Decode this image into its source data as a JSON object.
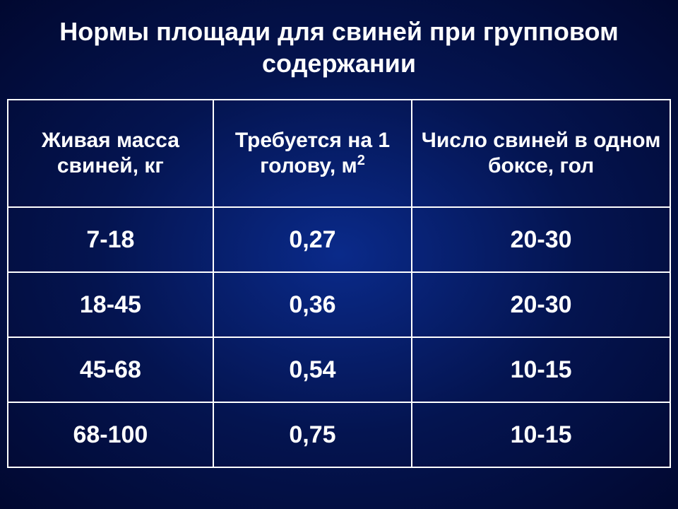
{
  "slide": {
    "title": "Нормы площади для свиней при групповом содержании",
    "title_fontsize": 36,
    "title_color": "#ffffff",
    "background_center": "#0a2a8a",
    "background_edge": "#010830"
  },
  "table": {
    "type": "table",
    "border_color": "#ffffff",
    "text_color": "#ffffff",
    "header_fontsize": 30,
    "cell_fontsize": 34,
    "column_widths_pct": [
      31,
      30,
      39
    ],
    "columns": [
      {
        "label_pre": "Живая масса свиней, кг",
        "sup": ""
      },
      {
        "label_pre": "Требуется на 1 голову, м",
        "sup": "2"
      },
      {
        "label_pre": "Число свиней в одном боксе, гол",
        "sup": ""
      }
    ],
    "rows": [
      [
        "7-18",
        "0,27",
        "20-30"
      ],
      [
        "18-45",
        "0,36",
        "20-30"
      ],
      [
        "45-68",
        "0,54",
        "10-15"
      ],
      [
        "68-100",
        "0,75",
        "10-15"
      ]
    ]
  }
}
